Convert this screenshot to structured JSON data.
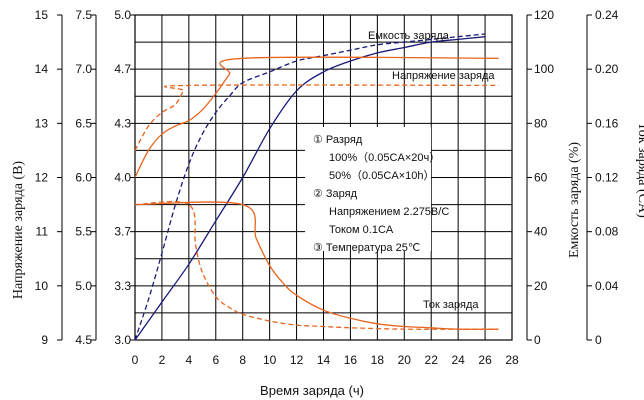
{
  "chart_data": {
    "type": "line",
    "xlabel": "Время заряда (ч)",
    "x_ticks": [
      "0",
      "2",
      "4",
      "6",
      "8",
      "10",
      "12",
      "14",
      "16",
      "18",
      "20",
      "22",
      "24",
      "26",
      "28"
    ],
    "xlim": [
      0,
      28
    ],
    "axes": {
      "voltage_12v": {
        "label": "Напряжение заряда (В)",
        "ticks": [
          "9",
          "10",
          "11",
          "12",
          "13",
          "14",
          "15"
        ],
        "range": [
          9,
          15
        ]
      },
      "voltage_6v": {
        "ticks": [
          "4.5",
          "5.0",
          "5.5",
          "6.0",
          "6.5",
          "7.0",
          "7.5"
        ],
        "range": [
          4.5,
          7.5
        ]
      },
      "voltage_cell": {
        "ticks": [
          "3.0",
          "3.3",
          "3.7",
          "4.0",
          "4.3",
          "4.7",
          "5.0"
        ],
        "range": [
          3.0,
          5.0
        ]
      },
      "capacity": {
        "label": "Емкость заряда (%)",
        "ticks": [
          "0",
          "20",
          "40",
          "60",
          "80",
          "100",
          "120"
        ],
        "range": [
          0,
          120
        ]
      },
      "current": {
        "label": "Ток заряда (CA)",
        "ticks": [
          "0",
          "0.04",
          "0.08",
          "0.12",
          "0.16",
          "0.20",
          "0.24"
        ],
        "range": [
          0,
          0.24
        ]
      }
    },
    "series": [
      {
        "name": "Емкость заряда",
        "condition": "100%",
        "axis": "capacity",
        "color": "#1a1a7a",
        "dash": false,
        "points": [
          [
            0,
            0
          ],
          [
            2,
            14
          ],
          [
            4,
            28
          ],
          [
            6,
            44
          ],
          [
            8,
            60
          ],
          [
            10,
            78
          ],
          [
            12,
            92
          ],
          [
            14,
            99
          ],
          [
            16,
            103
          ],
          [
            18,
            106
          ],
          [
            20,
            108
          ],
          [
            22,
            110
          ],
          [
            24,
            111
          ],
          [
            26,
            112
          ]
        ]
      },
      {
        "name": "Емкость заряда",
        "condition": "50%",
        "axis": "capacity",
        "color": "#1a1a7a",
        "dash": true,
        "points": [
          [
            0,
            0
          ],
          [
            1,
            15
          ],
          [
            2,
            32
          ],
          [
            3,
            50
          ],
          [
            4,
            65
          ],
          [
            5,
            76
          ],
          [
            6,
            84
          ],
          [
            7,
            90
          ],
          [
            8,
            95
          ],
          [
            10,
            99
          ],
          [
            12,
            103
          ],
          [
            14,
            105
          ],
          [
            16,
            107
          ],
          [
            18,
            109
          ],
          [
            20,
            110
          ],
          [
            22,
            111
          ],
          [
            24,
            112
          ],
          [
            26,
            113
          ]
        ]
      },
      {
        "name": "Напряжение заряда",
        "condition": "100%",
        "axis": "voltage_12v",
        "color": "#e8641e",
        "dash": false,
        "points": [
          [
            0,
            12.0
          ],
          [
            1,
            12.5
          ],
          [
            2,
            12.8
          ],
          [
            3,
            12.95
          ],
          [
            4,
            13.05
          ],
          [
            5,
            13.25
          ],
          [
            6,
            13.55
          ],
          [
            7,
            13.9
          ],
          [
            8,
            14.2
          ],
          [
            27,
            14.2
          ]
        ]
      },
      {
        "name": "Напряжение заряда",
        "condition": "50%",
        "axis": "voltage_12v",
        "color": "#e8641e",
        "dash": true,
        "points": [
          [
            0,
            12.5
          ],
          [
            1,
            12.95
          ],
          [
            2,
            13.2
          ],
          [
            3,
            13.35
          ],
          [
            3.6,
            13.6
          ],
          [
            4,
            13.7
          ],
          [
            27,
            13.7
          ]
        ]
      },
      {
        "name": "Ток заряда",
        "condition": "100%",
        "axis": "current",
        "color": "#e8641e",
        "dash": false,
        "points": [
          [
            0,
            0.1
          ],
          [
            8,
            0.1
          ],
          [
            9,
            0.075
          ],
          [
            10,
            0.055
          ],
          [
            11,
            0.042
          ],
          [
            12,
            0.033
          ],
          [
            14,
            0.022
          ],
          [
            16,
            0.016
          ],
          [
            18,
            0.012
          ],
          [
            20,
            0.01
          ],
          [
            22,
            0.009
          ],
          [
            24,
            0.008
          ],
          [
            27,
            0.008
          ]
        ]
      },
      {
        "name": "Ток заряда",
        "condition": "50%",
        "axis": "current",
        "color": "#e8641e",
        "dash": true,
        "points": [
          [
            0,
            0.1
          ],
          [
            4,
            0.1
          ],
          [
            4.5,
            0.07
          ],
          [
            5,
            0.05
          ],
          [
            6,
            0.032
          ],
          [
            7,
            0.024
          ],
          [
            8,
            0.019
          ],
          [
            10,
            0.014
          ],
          [
            12,
            0.011
          ],
          [
            14,
            0.01
          ],
          [
            16,
            0.009
          ],
          [
            20,
            0.008
          ],
          [
            24,
            0.008
          ],
          [
            27,
            0.008
          ]
        ]
      }
    ],
    "curve_labels": [
      "Емкость заряда",
      "Напряжение заряда",
      "Ток заряда"
    ],
    "annotation": [
      "①  Разряд",
      "100%（0.05CA×20ч）",
      "50%（0.05CA×10h）",
      "②  Заряд",
      "Напряжением 2.275В/С",
      "Током 0.1CA",
      "③  Температура 25℃"
    ],
    "grid": true,
    "colors": {
      "blue": "#1a1a7a",
      "orange": "#e8641e",
      "grid": "#000000"
    }
  }
}
